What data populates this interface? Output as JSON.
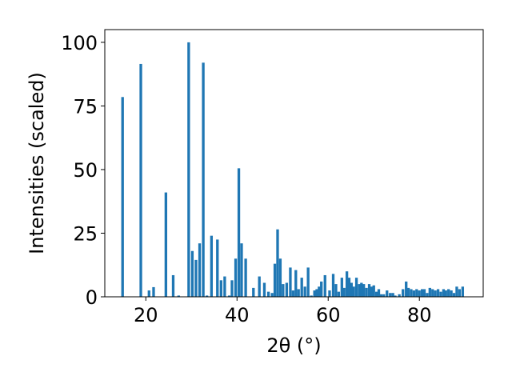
{
  "chart_data": {
    "type": "bar",
    "title": "",
    "xlabel": "2θ (°)",
    "ylabel": "Intensities (scaled)",
    "xlim": [
      11,
      94
    ],
    "ylim": [
      0,
      105
    ],
    "xticks": [
      20,
      40,
      60,
      80
    ],
    "yticks": [
      0,
      25,
      50,
      75,
      100
    ],
    "grid": false,
    "bar_color": "#1f77b4",
    "x": [
      14.9,
      18.9,
      20.7,
      21.7,
      24.4,
      26.0,
      27.2,
      29.4,
      30.2,
      31.0,
      31.8,
      32.6,
      33.4,
      34.4,
      35.7,
      36.5,
      37.3,
      38.3,
      38.9,
      39.7,
      40.4,
      41.0,
      41.9,
      43.6,
      44.9,
      46.0,
      46.9,
      47.7,
      48.3,
      48.9,
      49.5,
      50.1,
      50.9,
      51.7,
      52.3,
      52.9,
      53.5,
      54.2,
      54.9,
      55.6,
      56.3,
      57.0,
      57.5,
      58.0,
      58.5,
      59.3,
      60.3,
      61.1,
      61.7,
      62.3,
      63.0,
      63.5,
      64.1,
      64.6,
      65.1,
      65.6,
      66.2,
      66.8,
      67.3,
      67.8,
      68.4,
      69.0,
      69.5,
      70.0,
      70.6,
      71.1,
      71.6,
      72.2,
      72.9,
      73.6,
      74.2,
      74.7,
      75.6,
      76.4,
      77.1,
      77.6,
      78.2,
      78.8,
      79.4,
      80.0,
      80.6,
      81.1,
      81.7,
      82.3,
      82.9,
      83.5,
      84.1,
      84.7,
      85.3,
      85.8,
      86.4,
      87.0,
      87.6,
      88.2,
      88.8,
      89.5
    ],
    "values": [
      78.5,
      91.5,
      2.5,
      3.8,
      41.0,
      8.5,
      0.5,
      100.0,
      18.0,
      14.5,
      21.0,
      92.0,
      0.5,
      24.0,
      22.5,
      6.5,
      8.0,
      0.5,
      6.5,
      15.0,
      50.5,
      21.0,
      15.0,
      3.5,
      8.0,
      5.5,
      2.0,
      1.5,
      13.0,
      26.5,
      15.0,
      5.0,
      5.5,
      11.5,
      2.5,
      10.5,
      3.0,
      7.5,
      4.0,
      11.5,
      0.5,
      2.5,
      3.0,
      4.0,
      6.0,
      8.5,
      2.5,
      9.0,
      5.0,
      2.0,
      7.5,
      3.5,
      10.0,
      7.5,
      5.5,
      4.0,
      7.5,
      5.0,
      5.5,
      5.0,
      3.5,
      5.0,
      4.0,
      4.5,
      2.0,
      3.0,
      1.0,
      1.0,
      2.5,
      1.5,
      1.5,
      0.5,
      1.0,
      3.0,
      6.0,
      3.5,
      3.0,
      2.5,
      3.0,
      2.5,
      3.0,
      3.0,
      1.5,
      3.5,
      3.0,
      2.5,
      3.0,
      2.0,
      3.0,
      2.5,
      3.0,
      2.5,
      1.5,
      4.0,
      3.0,
      4.0
    ]
  }
}
